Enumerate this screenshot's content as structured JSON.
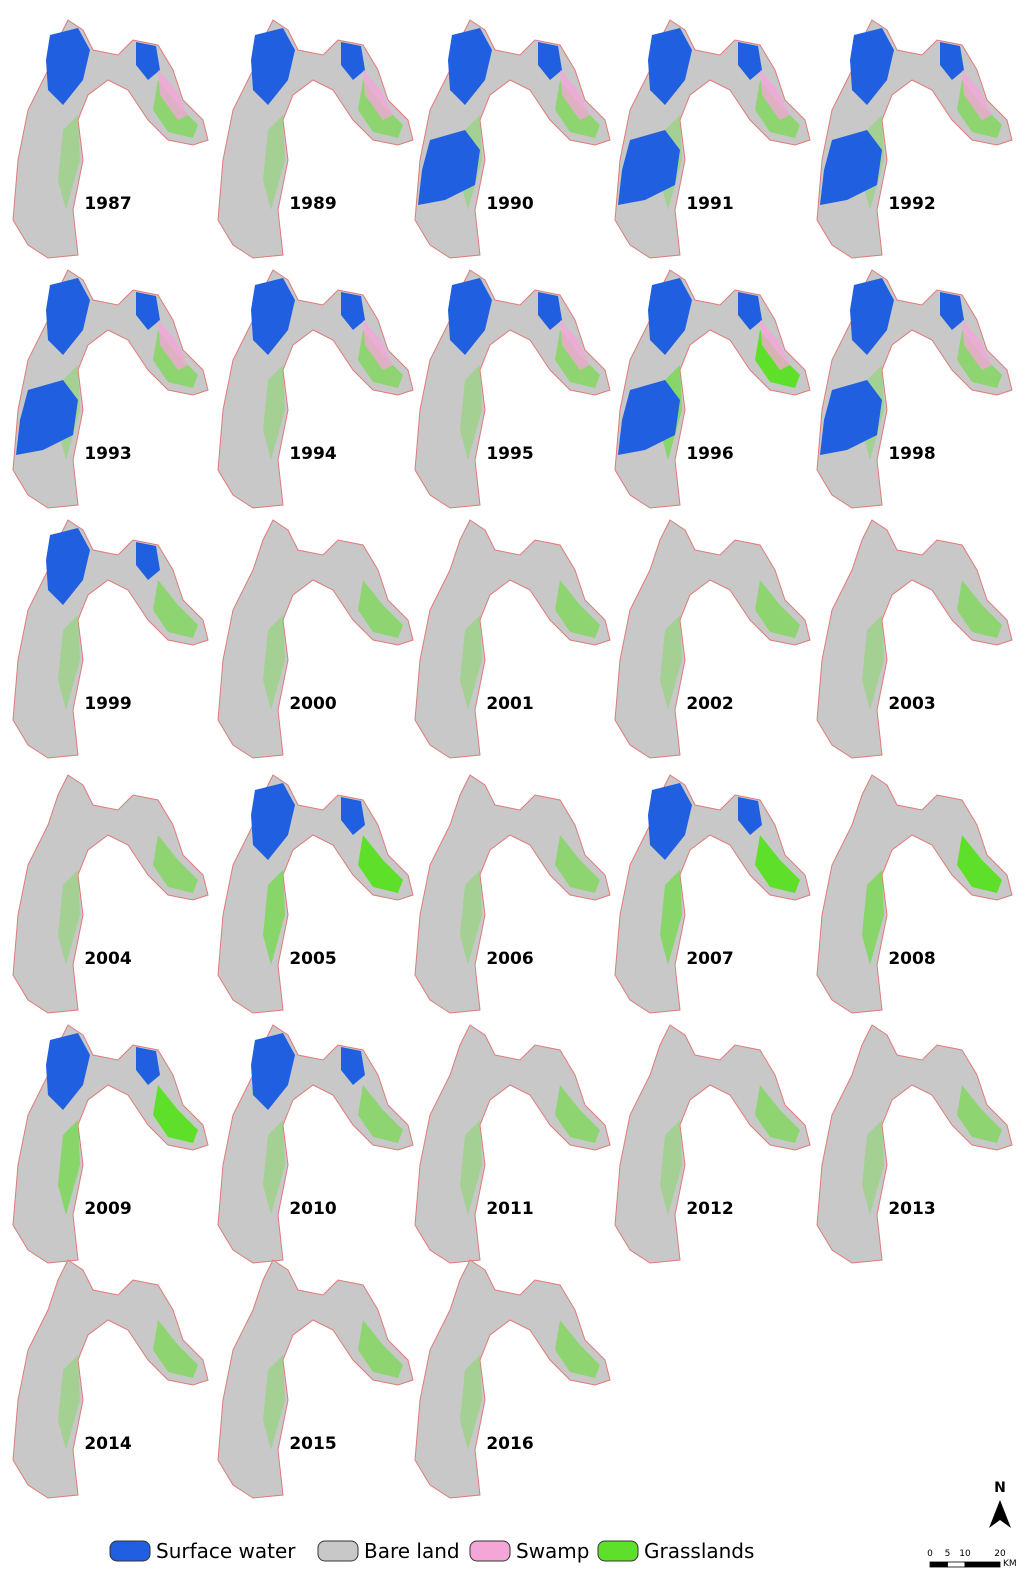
{
  "panels": [
    {
      "year": "1987"
    },
    {
      "year": "1989"
    },
    {
      "year": "1990"
    },
    {
      "year": "1991"
    },
    {
      "year": "1992"
    },
    {
      "year": "1993"
    },
    {
      "year": "1994"
    },
    {
      "year": "1995"
    },
    {
      "year": "1996"
    },
    {
      "year": "1998"
    },
    {
      "year": "1999"
    },
    {
      "year": "2000"
    },
    {
      "year": "2001"
    },
    {
      "year": "2002"
    },
    {
      "year": "2003"
    },
    {
      "year": "2004"
    },
    {
      "year": "2005"
    },
    {
      "year": "2006"
    },
    {
      "year": "2007"
    },
    {
      "year": "2008"
    },
    {
      "year": "2009"
    },
    {
      "year": "2010"
    },
    {
      "year": "2011"
    },
    {
      "year": "2012"
    },
    {
      "year": "2013"
    },
    {
      "year": "2014"
    },
    {
      "year": "2015"
    },
    {
      "year": "2016"
    }
  ],
  "legend": [
    {
      "label": "Surface water",
      "color": "#1f5fe0"
    },
    {
      "label": "Bare land",
      "color": "#c8c8c8"
    },
    {
      "label": "Swamp",
      "color": "#f4a6d8"
    },
    {
      "label": "Grasslands",
      "color": "#5ee02a"
    }
  ],
  "north": "N",
  "scale_bar": {
    "ticks": [
      0,
      5,
      10,
      20
    ],
    "unit": "KM"
  }
}
